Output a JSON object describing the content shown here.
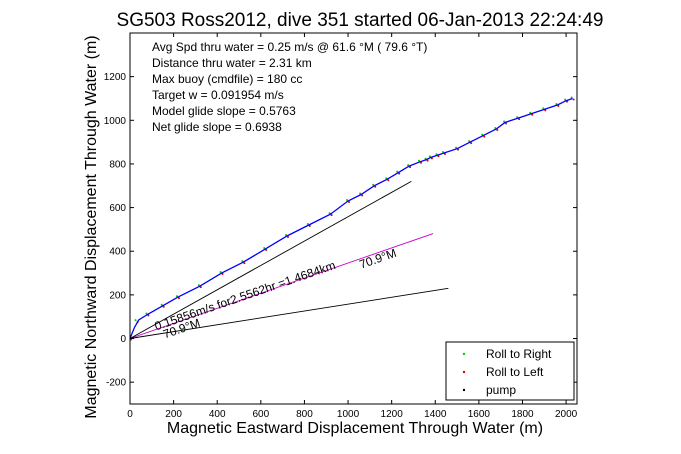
{
  "chart_data": {
    "type": "line",
    "title": "SG503 Ross2012, dive 351 started 06-Jan-2013 22:24:49",
    "xlabel": "Magnetic Eastward Displacement Through Water (m)",
    "ylabel": "Magnetic Northward Displacement Through Water (m)",
    "xlim": [
      0,
      2050
    ],
    "ylim": [
      -300,
      1400
    ],
    "xticks": [
      0,
      200,
      400,
      600,
      800,
      1000,
      1200,
      1400,
      1600,
      1800,
      2000
    ],
    "yticks": [
      -200,
      0,
      200,
      400,
      600,
      800,
      1000,
      1200
    ],
    "grid": false,
    "legend_position": "bottom-right",
    "info_lines": [
      "Avg Spd thru water =  0.25 m/s @  61.6   °M ( 79.6 °T)",
      "Distance thru water =  2.31 km",
      "Max buoy (cmdfile) = 180 cc",
      "Target w = 0.091954 m/s",
      "Model glide slope = 0.5763",
      "Net glide slope = 0.6938"
    ],
    "annotations": [
      {
        "text": "0.15856m/s for2.5562hr =1.4684km",
        "x": 120,
        "y": 0,
        "rotation_deg": -19
      },
      {
        "text": "70.9°M",
        "x": 1060,
        "y": 320,
        "rotation_deg": -19
      },
      {
        "text": "70.9°M",
        "x": 160,
        "y": 0,
        "rotation_deg": -19
      }
    ],
    "series": [
      {
        "name": "Roll to Right",
        "color": "#00cc00",
        "style": "dot",
        "x": [
          0,
          30,
          80,
          150,
          220,
          320,
          420,
          520,
          620,
          720,
          820,
          920,
          1000,
          1060,
          1120,
          1180,
          1230,
          1280,
          1330,
          1360,
          1380,
          1410,
          1440,
          1500,
          1560,
          1620,
          1680,
          1720,
          1780,
          1840,
          1900,
          1960,
          2000,
          2030
        ],
        "y": [
          0,
          80,
          110,
          150,
          190,
          240,
          300,
          350,
          410,
          470,
          520,
          570,
          630,
          660,
          700,
          730,
          760,
          790,
          810,
          820,
          830,
          840,
          850,
          870,
          900,
          930,
          960,
          990,
          1010,
          1030,
          1050,
          1070,
          1090,
          1100
        ]
      },
      {
        "name": "Roll to Left",
        "color": "#dd0000",
        "style": "dot",
        "x": [
          0,
          30,
          80,
          150,
          220,
          320,
          420,
          520,
          620,
          720,
          820,
          920,
          1000,
          1060,
          1120,
          1180,
          1230,
          1280,
          1330,
          1360,
          1380,
          1410,
          1440,
          1500,
          1560,
          1620,
          1680,
          1720,
          1780,
          1840,
          1900,
          1960,
          2000,
          2030
        ],
        "y": [
          0,
          80,
          110,
          150,
          190,
          240,
          300,
          350,
          410,
          470,
          520,
          570,
          630,
          660,
          700,
          730,
          760,
          790,
          810,
          820,
          830,
          840,
          850,
          870,
          900,
          930,
          960,
          990,
          1010,
          1030,
          1050,
          1070,
          1090,
          1100
        ]
      },
      {
        "name": "pump",
        "color": "#000000",
        "style": "dot",
        "x": [],
        "y": []
      },
      {
        "color": "#0000ff",
        "style": "line",
        "x": [
          0,
          20,
          40,
          80,
          150,
          220,
          320,
          420,
          520,
          620,
          720,
          820,
          920,
          1000,
          1060,
          1120,
          1180,
          1230,
          1280,
          1330,
          1360,
          1380,
          1410,
          1440,
          1500,
          1560,
          1620,
          1680,
          1720,
          1780,
          1840,
          1900,
          1960,
          2000,
          2030
        ],
        "y": [
          0,
          50,
          85,
          110,
          150,
          190,
          240,
          300,
          350,
          410,
          470,
          520,
          570,
          630,
          660,
          700,
          730,
          760,
          790,
          810,
          820,
          830,
          840,
          850,
          870,
          900,
          930,
          960,
          990,
          1010,
          1030,
          1050,
          1070,
          1090,
          1100
        ]
      },
      {
        "color": "#cc00cc",
        "style": "line",
        "x": [
          0,
          1390
        ],
        "y": [
          0,
          481
        ]
      },
      {
        "color": "#000000",
        "style": "line",
        "x": [
          0,
          1290
        ],
        "y": [
          0,
          720
        ]
      },
      {
        "color": "#000000",
        "style": "line",
        "x": [
          0,
          1460
        ],
        "y": [
          0,
          230
        ]
      }
    ]
  }
}
